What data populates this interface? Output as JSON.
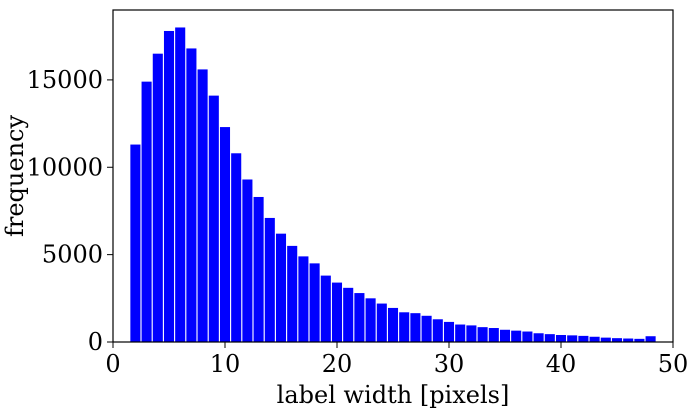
{
  "chart_data": {
    "type": "bar",
    "xlabel": "label width [pixels]",
    "ylabel": "frequency",
    "xlim": [
      0,
      50
    ],
    "ylim": [
      0,
      19000
    ],
    "x_ticks": [
      "0",
      "10",
      "20",
      "30",
      "40",
      "50"
    ],
    "y_ticks": [
      "0",
      "5000",
      "10000",
      "15000"
    ],
    "grid": false,
    "bar_color": "#0000ff",
    "categories": [
      2,
      3,
      4,
      5,
      6,
      7,
      8,
      9,
      10,
      11,
      12,
      13,
      14,
      15,
      16,
      17,
      18,
      19,
      20,
      21,
      22,
      23,
      24,
      25,
      26,
      27,
      28,
      29,
      30,
      31,
      32,
      33,
      34,
      35,
      36,
      37,
      38,
      39,
      40,
      41,
      42,
      43,
      44,
      45,
      46,
      47,
      48
    ],
    "values": [
      11300,
      14900,
      16500,
      17800,
      18000,
      16800,
      15600,
      14100,
      12300,
      10800,
      9300,
      8300,
      7100,
      6200,
      5500,
      4900,
      4500,
      3800,
      3400,
      3100,
      2800,
      2500,
      2200,
      1950,
      1700,
      1650,
      1500,
      1300,
      1150,
      1000,
      950,
      850,
      800,
      700,
      650,
      600,
      500,
      450,
      400,
      380,
      350,
      300,
      250,
      220,
      200,
      180,
      330
    ]
  }
}
